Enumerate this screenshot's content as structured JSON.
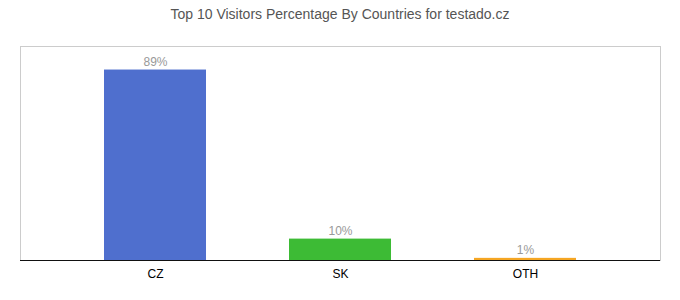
{
  "chart_data": {
    "type": "bar",
    "title": "Top 10 Visitors Percentage By Countries for testado.cz",
    "categories": [
      "CZ",
      "SK",
      "OTH"
    ],
    "values": [
      89,
      10,
      1
    ],
    "value_labels": [
      "89%",
      "10%",
      "1%"
    ],
    "colors": [
      "#4f6fce",
      "#3dbb35",
      "#f5a623"
    ],
    "ylim": [
      0,
      100
    ],
    "yticks": [],
    "data_labels": true,
    "tick_labels": "x"
  }
}
